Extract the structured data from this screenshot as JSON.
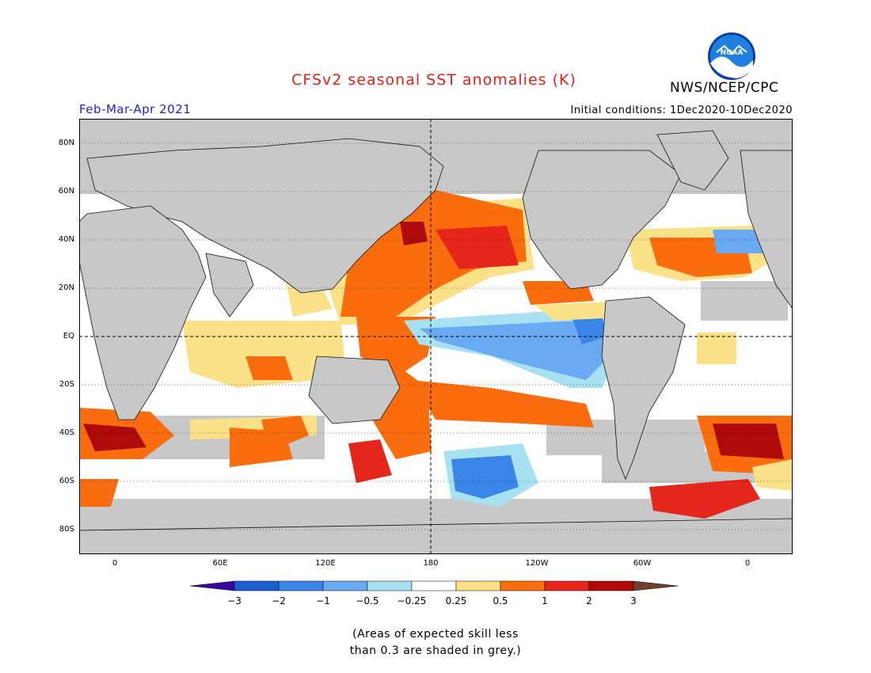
{
  "header": {
    "title": "CFSv2 seasonal SST anomalies (K)",
    "period": "Feb-Mar-Apr 2021",
    "initial_conditions": "Initial conditions: 1Dec2020-10Dec2020",
    "organization": "NWS/NCEP/CPC",
    "logo_text": "NOAA"
  },
  "map": {
    "lat_labels": [
      "80N",
      "60N",
      "40N",
      "20N",
      "EQ",
      "20S",
      "40S",
      "60S",
      "80S"
    ],
    "lon_labels": [
      "0",
      "60E",
      "120E",
      "180",
      "120W",
      "60W",
      "0"
    ],
    "projection": "cylindrical equidistant",
    "lon_range": [
      -20,
      380
    ],
    "lat_range": [
      -90,
      90
    ],
    "land_color": "#c8c8c8",
    "dashed_reference_lines": [
      "EQ",
      "180"
    ],
    "features": [
      {
        "region": "Equatorial central-eastern Pacific",
        "anomaly": "cool (La Nina)",
        "range": "-1 to -0.5"
      },
      {
        "region": "North Pacific",
        "anomaly": "warm",
        "range": "0.5 to 2"
      },
      {
        "region": "Western tropical Pacific and Maritime Continent",
        "anomaly": "warm",
        "range": "0.5 to 1"
      },
      {
        "region": "South Pacific diagonal band",
        "anomaly": "warm",
        "range": "0.5 to 1"
      },
      {
        "region": "Southern Ocean south of Pacific",
        "anomaly": "cool",
        "range": "-1 to -0.5"
      },
      {
        "region": "Southern Ocean south Atlantic",
        "anomaly": "warm",
        "range": "1 to 3"
      },
      {
        "region": "Indian Ocean",
        "anomaly": "weak warm",
        "range": "0.25 to 0.5"
      }
    ]
  },
  "colorbar": {
    "labels": [
      "-3",
      "-2",
      "-1",
      "-0.5",
      "-0.25",
      "0.25",
      "0.5",
      "1",
      "2",
      "3"
    ],
    "colors": [
      "#3a06a0",
      "#1a5fd0",
      "#3a86e8",
      "#6aaaf2",
      "#a8e2f2",
      "#ffffff",
      "#fbe188",
      "#f96d0e",
      "#e5261a",
      "#ae0a0a",
      "#6e4030"
    ]
  },
  "footnote": {
    "line1": "(Areas of expected skill less",
    "line2": "than 0.3 are shaded in grey.)"
  }
}
